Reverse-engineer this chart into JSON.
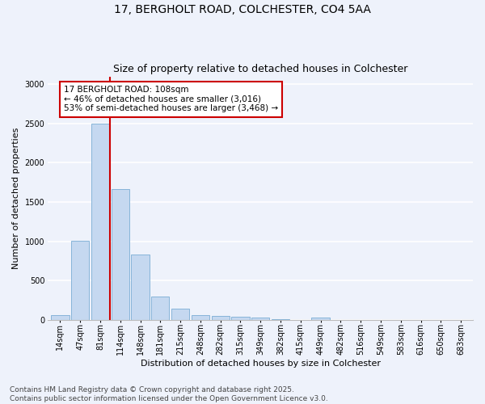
{
  "title_line1": "17, BERGHOLT ROAD, COLCHESTER, CO4 5AA",
  "title_line2": "Size of property relative to detached houses in Colchester",
  "xlabel": "Distribution of detached houses by size in Colchester",
  "ylabel": "Number of detached properties",
  "categories": [
    "14sqm",
    "47sqm",
    "81sqm",
    "114sqm",
    "148sqm",
    "181sqm",
    "215sqm",
    "248sqm",
    "282sqm",
    "315sqm",
    "349sqm",
    "382sqm",
    "415sqm",
    "449sqm",
    "482sqm",
    "516sqm",
    "549sqm",
    "583sqm",
    "616sqm",
    "650sqm",
    "683sqm"
  ],
  "values": [
    60,
    1010,
    2500,
    1670,
    830,
    300,
    140,
    65,
    55,
    40,
    25,
    8,
    0,
    30,
    0,
    0,
    0,
    0,
    0,
    0,
    0
  ],
  "bar_color": "#c5d8f0",
  "bar_edge_color": "#7aadd4",
  "vline_color": "#cc0000",
  "annotation_text": "17 BERGHOLT ROAD: 108sqm\n← 46% of detached houses are smaller (3,016)\n53% of semi-detached houses are larger (3,468) →",
  "annotation_box_color": "#ffffff",
  "annotation_box_edge_color": "#cc0000",
  "ylim": [
    0,
    3100
  ],
  "yticks": [
    0,
    500,
    1000,
    1500,
    2000,
    2500,
    3000
  ],
  "background_color": "#eef2fb",
  "grid_color": "#ffffff",
  "footnote": "Contains HM Land Registry data © Crown copyright and database right 2025.\nContains public sector information licensed under the Open Government Licence v3.0.",
  "title_fontsize": 10,
  "subtitle_fontsize": 9,
  "axis_label_fontsize": 8,
  "tick_fontsize": 7,
  "annotation_fontsize": 7.5,
  "footnote_fontsize": 6.5
}
